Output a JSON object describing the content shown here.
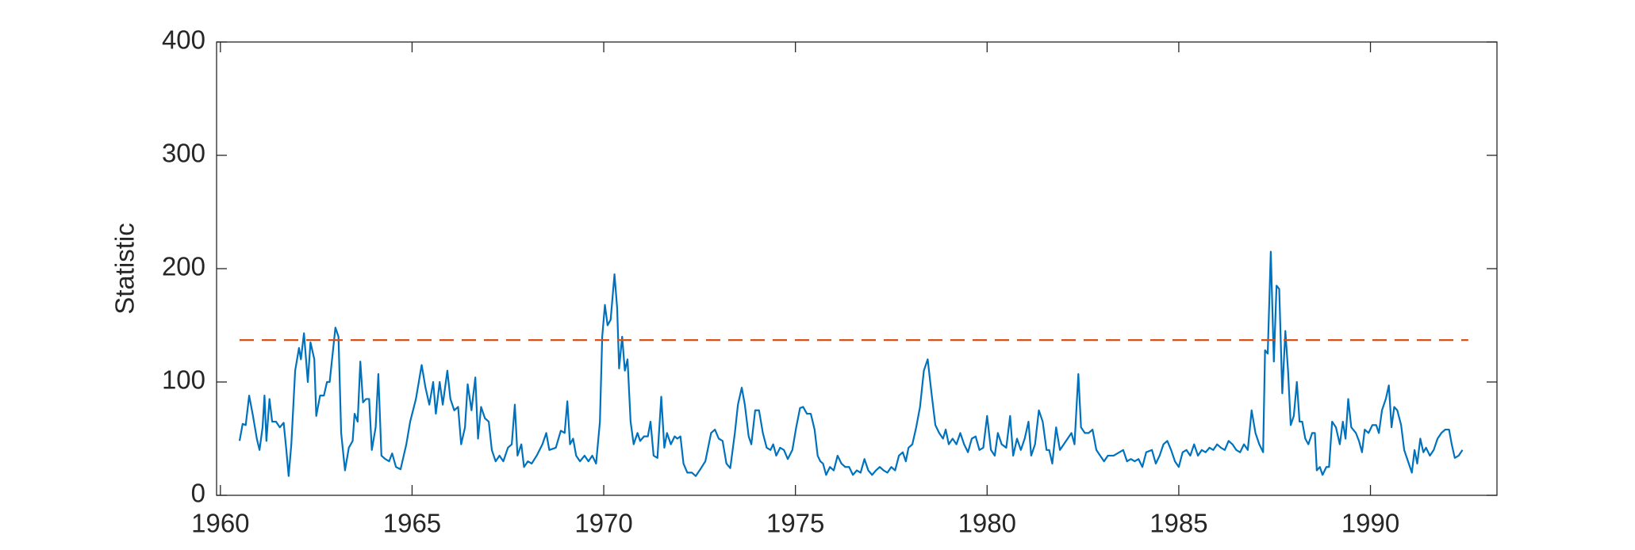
{
  "chart_data": {
    "type": "line",
    "y_label": "Statistic",
    "xlim": [
      1959.9,
      1993.3
    ],
    "xticks": [
      1960,
      1965,
      1970,
      1975,
      1980,
      1985,
      1990
    ],
    "ylim": [
      0,
      400
    ],
    "yticks": [
      0,
      100,
      200,
      300,
      400
    ],
    "grid": false,
    "series": [
      {
        "color": "#0072bd",
        "x": [
          1960.5,
          1960.58,
          1960.66,
          1960.75,
          1960.85,
          1960.95,
          1961.02,
          1961.1,
          1961.15,
          1961.2,
          1961.28,
          1961.35,
          1961.45,
          1961.55,
          1961.65,
          1961.72,
          1961.78,
          1961.85,
          1961.95,
          1962.05,
          1962.1,
          1962.18,
          1962.28,
          1962.35,
          1962.45,
          1962.5,
          1962.6,
          1962.7,
          1962.78,
          1962.85,
          1963.0,
          1963.08,
          1963.15,
          1963.25,
          1963.35,
          1963.45,
          1963.5,
          1963.58,
          1963.65,
          1963.72,
          1963.8,
          1963.88,
          1963.95,
          1964.05,
          1964.12,
          1964.2,
          1964.3,
          1964.4,
          1964.48,
          1964.58,
          1964.7,
          1964.85,
          1964.95,
          1965.1,
          1965.25,
          1965.35,
          1965.45,
          1965.55,
          1965.62,
          1965.72,
          1965.8,
          1965.92,
          1966.0,
          1966.1,
          1966.2,
          1966.28,
          1966.38,
          1966.45,
          1966.55,
          1966.65,
          1966.72,
          1966.8,
          1966.9,
          1967.0,
          1967.08,
          1967.18,
          1967.28,
          1967.38,
          1967.5,
          1967.6,
          1967.68,
          1967.75,
          1967.85,
          1967.92,
          1968.02,
          1968.12,
          1968.25,
          1968.4,
          1968.5,
          1968.58,
          1968.75,
          1968.88,
          1968.98,
          1969.05,
          1969.12,
          1969.2,
          1969.28,
          1969.38,
          1969.5,
          1969.6,
          1969.7,
          1969.8,
          1969.9,
          1969.96,
          1970.03,
          1970.1,
          1970.18,
          1970.28,
          1970.35,
          1970.4,
          1970.48,
          1970.55,
          1970.62,
          1970.7,
          1970.78,
          1970.88,
          1970.95,
          1971.05,
          1971.15,
          1971.22,
          1971.3,
          1971.4,
          1971.5,
          1971.58,
          1971.65,
          1971.75,
          1971.85,
          1971.92,
          1972.0,
          1972.08,
          1972.18,
          1972.3,
          1972.4,
          1972.5,
          1972.65,
          1972.8,
          1972.9,
          1973.0,
          1973.1,
          1973.2,
          1973.3,
          1973.42,
          1973.5,
          1973.6,
          1973.68,
          1973.78,
          1973.85,
          1973.95,
          1974.05,
          1974.15,
          1974.25,
          1974.35,
          1974.42,
          1974.5,
          1974.6,
          1974.7,
          1974.8,
          1974.92,
          1975.02,
          1975.12,
          1975.2,
          1975.3,
          1975.4,
          1975.5,
          1975.58,
          1975.65,
          1975.72,
          1975.8,
          1975.9,
          1976.0,
          1976.1,
          1976.2,
          1976.3,
          1976.4,
          1976.5,
          1976.6,
          1976.7,
          1976.8,
          1976.9,
          1977.0,
          1977.1,
          1977.2,
          1977.3,
          1977.4,
          1977.5,
          1977.6,
          1977.7,
          1977.8,
          1977.88,
          1977.95,
          1978.05,
          1978.15,
          1978.25,
          1978.35,
          1978.45,
          1978.55,
          1978.65,
          1978.75,
          1978.85,
          1978.92,
          1979.0,
          1979.1,
          1979.2,
          1979.3,
          1979.4,
          1979.5,
          1979.6,
          1979.7,
          1979.8,
          1979.9,
          1980.0,
          1980.1,
          1980.2,
          1980.28,
          1980.38,
          1980.5,
          1980.6,
          1980.68,
          1980.78,
          1980.88,
          1980.98,
          1981.08,
          1981.15,
          1981.25,
          1981.35,
          1981.45,
          1981.55,
          1981.62,
          1981.7,
          1981.8,
          1981.9,
          1982.0,
          1982.1,
          1982.2,
          1982.28,
          1982.38,
          1982.45,
          1982.55,
          1982.65,
          1982.75,
          1982.85,
          1982.95,
          1983.05,
          1983.15,
          1983.3,
          1983.45,
          1983.55,
          1983.65,
          1983.75,
          1983.85,
          1983.95,
          1984.05,
          1984.15,
          1984.3,
          1984.4,
          1984.5,
          1984.6,
          1984.7,
          1984.8,
          1984.9,
          1985.0,
          1985.1,
          1985.2,
          1985.3,
          1985.4,
          1985.5,
          1985.6,
          1985.7,
          1985.8,
          1985.9,
          1986.0,
          1986.1,
          1986.2,
          1986.3,
          1986.4,
          1986.5,
          1986.6,
          1986.7,
          1986.8,
          1986.9,
          1987.0,
          1987.1,
          1987.2,
          1987.25,
          1987.32,
          1987.4,
          1987.48,
          1987.55,
          1987.62,
          1987.7,
          1987.78,
          1987.85,
          1987.92,
          1988.0,
          1988.08,
          1988.15,
          1988.22,
          1988.3,
          1988.38,
          1988.48,
          1988.55,
          1988.6,
          1988.68,
          1988.75,
          1988.85,
          1988.92,
          1989.0,
          1989.1,
          1989.2,
          1989.28,
          1989.35,
          1989.42,
          1989.5,
          1989.62,
          1989.7,
          1989.78,
          1989.85,
          1989.95,
          1990.05,
          1990.15,
          1990.22,
          1990.3,
          1990.4,
          1990.48,
          1990.55,
          1990.62,
          1990.7,
          1990.8,
          1990.88,
          1990.98,
          1991.08,
          1991.15,
          1991.22,
          1991.3,
          1991.38,
          1991.45,
          1991.55,
          1991.65,
          1991.75,
          1991.85,
          1991.95,
          1992.05,
          1992.12,
          1992.2,
          1992.3,
          1992.4
        ],
        "values": [
          48,
          63,
          62,
          88,
          70,
          50,
          40,
          60,
          88,
          48,
          85,
          65,
          65,
          60,
          64,
          40,
          17,
          45,
          110,
          130,
          120,
          143,
          100,
          135,
          120,
          70,
          88,
          88,
          100,
          100,
          148,
          140,
          55,
          22,
          42,
          48,
          72,
          65,
          118,
          82,
          85,
          85,
          40,
          60,
          107,
          35,
          32,
          30,
          37,
          25,
          23,
          45,
          65,
          85,
          115,
          95,
          80,
          100,
          72,
          100,
          80,
          110,
          85,
          75,
          78,
          45,
          60,
          98,
          75,
          104,
          50,
          78,
          68,
          65,
          40,
          30,
          35,
          30,
          42,
          45,
          80,
          35,
          45,
          25,
          30,
          28,
          35,
          45,
          55,
          40,
          42,
          57,
          55,
          83,
          45,
          50,
          35,
          30,
          35,
          30,
          35,
          28,
          65,
          140,
          168,
          150,
          155,
          195,
          165,
          112,
          140,
          110,
          120,
          65,
          45,
          55,
          48,
          52,
          52,
          65,
          35,
          33,
          87,
          42,
          55,
          45,
          52,
          50,
          52,
          28,
          20,
          20,
          17,
          22,
          30,
          55,
          58,
          50,
          48,
          28,
          24,
          55,
          80,
          95,
          80,
          52,
          45,
          75,
          75,
          55,
          42,
          40,
          45,
          35,
          42,
          40,
          32,
          40,
          60,
          77,
          78,
          72,
          72,
          58,
          35,
          30,
          28,
          18,
          25,
          22,
          35,
          28,
          25,
          25,
          18,
          22,
          20,
          32,
          22,
          18,
          22,
          25,
          22,
          20,
          25,
          22,
          35,
          38,
          30,
          42,
          45,
          60,
          78,
          110,
          120,
          90,
          62,
          55,
          50,
          58,
          45,
          50,
          45,
          55,
          45,
          38,
          50,
          52,
          40,
          42,
          70,
          40,
          35,
          55,
          45,
          42,
          70,
          35,
          50,
          40,
          50,
          65,
          35,
          45,
          75,
          65,
          40,
          40,
          28,
          60,
          40,
          45,
          50,
          55,
          45,
          107,
          60,
          55,
          55,
          58,
          40,
          35,
          30,
          35,
          35,
          38,
          40,
          30,
          32,
          30,
          32,
          25,
          38,
          40,
          28,
          35,
          45,
          48,
          40,
          30,
          25,
          38,
          40,
          35,
          45,
          35,
          40,
          38,
          42,
          40,
          45,
          42,
          40,
          48,
          45,
          40,
          38,
          45,
          40,
          75,
          55,
          45,
          38,
          128,
          125,
          215,
          118,
          185,
          182,
          90,
          145,
          110,
          62,
          70,
          100,
          65,
          65,
          50,
          45,
          55,
          55,
          22,
          25,
          18,
          25,
          25,
          65,
          60,
          45,
          65,
          50,
          85,
          60,
          55,
          48,
          38,
          58,
          55,
          62,
          62,
          55,
          75,
          85,
          97,
          60,
          78,
          75,
          62,
          40,
          30,
          20,
          40,
          28,
          50,
          38,
          42,
          35,
          40,
          50,
          55,
          58,
          58,
          45,
          33,
          35,
          40
        ]
      },
      {
        "color": "#d95319",
        "dash": true,
        "x": [
          1960.5,
          1992.55
        ],
        "values": [
          137,
          137
        ]
      }
    ]
  }
}
